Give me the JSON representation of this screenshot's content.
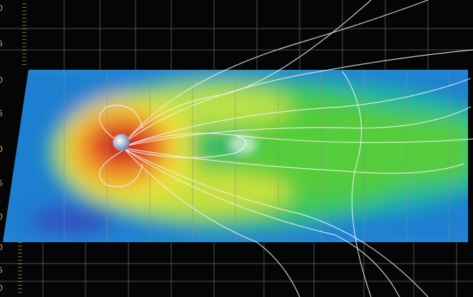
{
  "edge_labels": [
    "0",
    "5",
    "0",
    "5",
    "0",
    "5",
    "0",
    "0",
    "5",
    "0"
  ]
}
